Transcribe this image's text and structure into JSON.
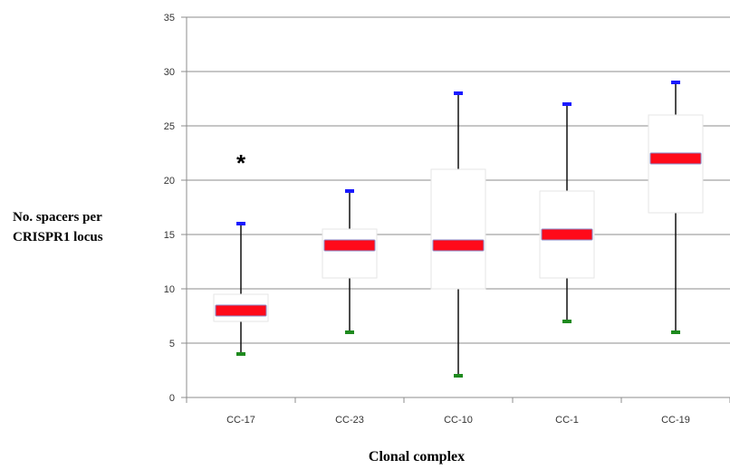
{
  "chart_data": {
    "type": "box",
    "title": "",
    "xlabel": "Clonal complex",
    "ylabel_lines": [
      "No. spacers per",
      "CRISPR1 locus"
    ],
    "ylim": [
      0,
      35
    ],
    "yticks": [
      0,
      5,
      10,
      15,
      20,
      25,
      30,
      35
    ],
    "grid": true,
    "legend": "none",
    "categories": [
      "CC-17",
      "CC-23",
      "CC-10",
      "CC-1",
      "CC-19"
    ],
    "boxes": [
      {
        "category": "CC-17",
        "min": 4,
        "q1": 7,
        "median": 8,
        "q3": 9.5,
        "max": 16
      },
      {
        "category": "CC-23",
        "min": 6,
        "q1": 11,
        "median": 14,
        "q3": 15.5,
        "max": 19
      },
      {
        "category": "CC-10",
        "min": 2,
        "q1": 10,
        "median": 14,
        "q3": 21,
        "max": 28
      },
      {
        "category": "CC-1",
        "min": 7,
        "q1": 11,
        "median": 15,
        "q3": 19,
        "max": 27
      },
      {
        "category": "CC-19",
        "min": 6,
        "q1": 17,
        "median": 22,
        "q3": 26,
        "max": 29
      }
    ],
    "annotations": [
      {
        "text": "*",
        "category": "CC-17",
        "y": 22
      }
    ],
    "colors": {
      "median": "#ff0a1a",
      "median_edge": "#8a8ac8",
      "max_cap": "#1a1aff",
      "min_cap": "#1e8a1e",
      "whisker": "#111111",
      "gridline": "#8c8c8c",
      "axis": "#8c8c8c"
    }
  }
}
